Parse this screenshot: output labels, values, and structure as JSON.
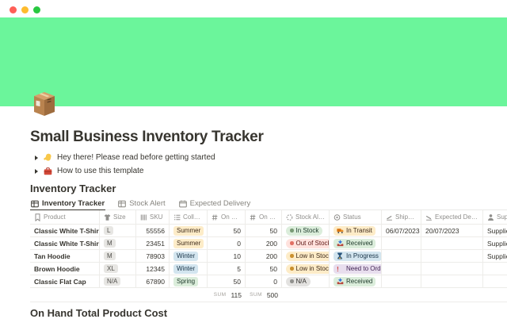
{
  "window": {
    "traffic_lights": [
      "#FF5F57",
      "#FEBC2E",
      "#28C840"
    ]
  },
  "page": {
    "title": "Small Business Inventory Tracker",
    "icon": "package-icon",
    "toggles": [
      {
        "icon": "wave-icon",
        "label": "Hey there! Please read before getting started"
      },
      {
        "icon": "toolbox-icon",
        "label": "How to use this template"
      }
    ],
    "section_title": "Inventory Tracker",
    "next_section_title": "On Hand Total Product Cost"
  },
  "tabs": [
    {
      "label": "Inventory Tracker",
      "icon": "table-icon",
      "active": true
    },
    {
      "label": "Stock Alert",
      "icon": "table-icon",
      "active": false
    },
    {
      "label": "Expected Delivery",
      "icon": "calendar-icon",
      "active": false
    }
  ],
  "table": {
    "columns": [
      {
        "key": "product",
        "label": "Product",
        "icon": "bookmark-icon",
        "type": "text"
      },
      {
        "key": "size",
        "label": "Size",
        "icon": "shirt-icon",
        "type": "tag"
      },
      {
        "key": "sku",
        "label": "SKU",
        "icon": "barcode-icon",
        "type": "number"
      },
      {
        "key": "collection",
        "label": "Collecti...",
        "icon": "list-icon",
        "type": "select"
      },
      {
        "key": "on_hand",
        "label": "On Hand",
        "icon": "hash-icon",
        "type": "number"
      },
      {
        "key": "on_order",
        "label": "On Order",
        "icon": "hash-icon",
        "type": "number"
      },
      {
        "key": "stock_alert",
        "label": "Stock Alert",
        "icon": "dashed-circle-icon",
        "type": "alert"
      },
      {
        "key": "status",
        "label": "Status",
        "icon": "status-icon",
        "type": "status"
      },
      {
        "key": "shipped_on",
        "label": "Shipped On",
        "icon": "takeoff-icon",
        "type": "text"
      },
      {
        "key": "expected_delivery",
        "label": "Expected Delivery",
        "icon": "landing-icon",
        "type": "text"
      },
      {
        "key": "supplier",
        "label": "Supplier",
        "icon": "person-icon",
        "type": "text"
      }
    ],
    "rows": [
      {
        "product": "Classic White T-Shirt",
        "size": "L",
        "sku": "55556",
        "collection": "Summer",
        "on_hand": "50",
        "on_order": "50",
        "stock_alert": "In Stock",
        "status": "In Transit",
        "shipped_on": "06/07/2023",
        "expected_delivery": "20/07/2023",
        "supplier": "Supplier"
      },
      {
        "product": "Classic White T-Shirt",
        "size": "M",
        "sku": "23451",
        "collection": "Summer",
        "on_hand": "0",
        "on_order": "200",
        "stock_alert": "Out of Stock",
        "status": "Received",
        "shipped_on": "",
        "expected_delivery": "",
        "supplier": "Supplier"
      },
      {
        "product": "Tan Hoodie",
        "size": "M",
        "sku": "78903",
        "collection": "Winter",
        "on_hand": "10",
        "on_order": "200",
        "stock_alert": "Low in Stock",
        "status": "In Progress",
        "shipped_on": "",
        "expected_delivery": "",
        "supplier": "Supplier"
      },
      {
        "product": "Brown Hoodie",
        "size": "XL",
        "sku": "12345",
        "collection": "Winter",
        "on_hand": "5",
        "on_order": "50",
        "stock_alert": "Low in Stock",
        "status": "Need to Order",
        "shipped_on": "",
        "expected_delivery": "",
        "supplier": ""
      },
      {
        "product": "Classic Flat Cap",
        "size": "N/A",
        "sku": "67890",
        "collection": "Spring",
        "on_hand": "50",
        "on_order": "0",
        "stock_alert": "N/A",
        "status": "Received",
        "shipped_on": "",
        "expected_delivery": "",
        "supplier": ""
      }
    ],
    "summary": {
      "label": "SUM",
      "on_hand": "115",
      "on_order": "500"
    }
  },
  "colors": {
    "cover": "#6BF59B",
    "collection": {
      "Summer": {
        "bg": "#FDECC8",
        "fg": "#402C1B"
      },
      "Winter": {
        "bg": "#D3E5EF",
        "fg": "#183347"
      },
      "Spring": {
        "bg": "#DBEDDB",
        "fg": "#1C3829"
      }
    },
    "stock_alert": {
      "In Stock": {
        "bg": "#DBEDDB",
        "fg": "#1C3829",
        "dot": "#7A9B76"
      },
      "Out of Stock": {
        "bg": "#FFE2DD",
        "fg": "#5D1715",
        "dot": "#E16F64"
      },
      "Low in Stock": {
        "bg": "#FDECC8",
        "fg": "#402C1B",
        "dot": "#CB912F"
      },
      "N/A": {
        "bg": "#E3E2E0",
        "fg": "#32302C",
        "dot": "#91918E"
      }
    },
    "status": {
      "In Transit": {
        "bg": "#FDECC8",
        "fg": "#402C1B",
        "icon": "truck-icon"
      },
      "Received": {
        "bg": "#DBEDDB",
        "fg": "#1C3829",
        "icon": "inbox-icon"
      },
      "In Progress": {
        "bg": "#D3E5EF",
        "fg": "#183347",
        "icon": "hourglass-icon"
      },
      "Need to Order": {
        "bg": "#E8DEEE",
        "fg": "#412454",
        "icon": "exclamation-icon"
      }
    }
  }
}
